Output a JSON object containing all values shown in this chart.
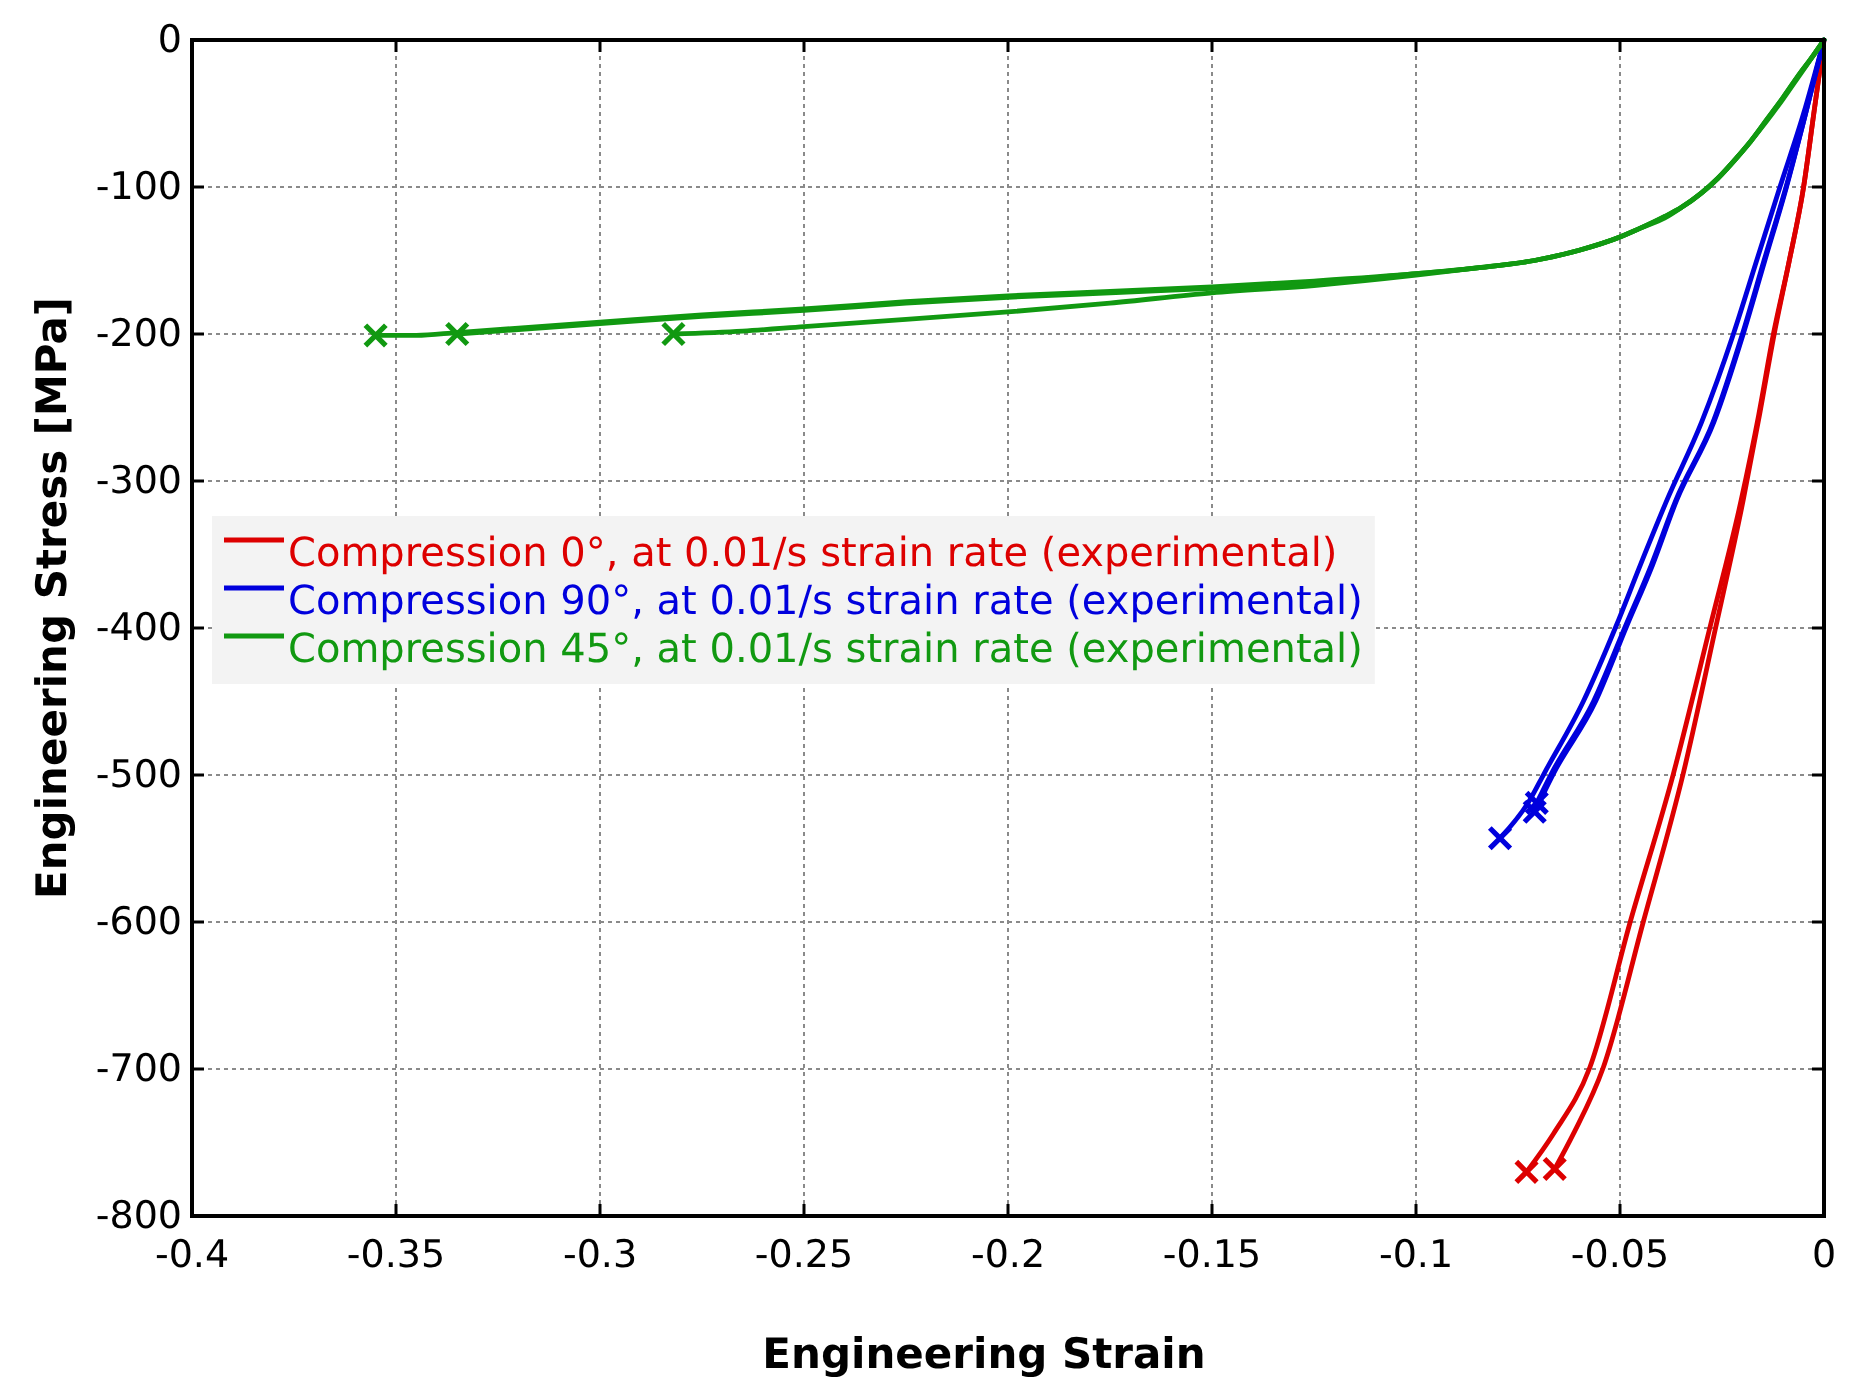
{
  "chart_data": {
    "type": "line",
    "xlabel": "Engineering Strain",
    "ylabel": "Engineering Stress [MPa]",
    "xlim": [
      -0.4,
      0
    ],
    "ylim": [
      -800,
      0
    ],
    "xticks": [
      -0.4,
      -0.35,
      -0.3,
      -0.25,
      -0.2,
      -0.15,
      -0.1,
      -0.05,
      0
    ],
    "yticks": [
      -800,
      -700,
      -600,
      -500,
      -400,
      -300,
      -200,
      -100,
      0
    ],
    "grid": true,
    "legend": "left",
    "line_style": "solid",
    "series": [
      {
        "name": "Compression 0°, at 0.01/s strain rate (experimental)",
        "color": "#dd0000",
        "x": [
          0,
          -0.0025,
          -0.005,
          -0.0085,
          -0.0124,
          -0.016,
          -0.0203,
          -0.0279,
          -0.0369,
          -0.0475,
          -0.0574,
          -0.0663,
          -0.0729
        ],
        "values": [
          0,
          -50,
          -100,
          -150,
          -200,
          -255,
          -313,
          -399,
          -499,
          -600,
          -699,
          -744,
          -770
        ]
      },
      {
        "color": "#dd0000",
        "x": [
          0,
          -0.0025,
          -0.005,
          -0.0085,
          -0.0122,
          -0.0158,
          -0.0198,
          -0.0265,
          -0.0345,
          -0.0443,
          -0.0541,
          -0.0614,
          -0.066
        ],
        "values": [
          0,
          -50,
          -100,
          -150,
          -200,
          -255,
          -313,
          -399,
          -499,
          -600,
          -699,
          -744,
          -768
        ]
      },
      {
        "type": "scatter",
        "marker": "cross",
        "color": "#dd0000",
        "x": [
          -0.0729,
          -0.066
        ],
        "values": [
          -770,
          -768
        ]
      },
      {
        "name": "Compression 90°, at 0.01/s strain rate (experimental)",
        "color": "#0000dd",
        "x": [
          0,
          -0.005,
          -0.0108,
          -0.0165,
          -0.0222,
          -0.03,
          -0.0385,
          -0.045,
          -0.051,
          -0.059,
          -0.0686,
          -0.0721,
          -0.0794
        ],
        "values": [
          0,
          -50,
          -100,
          -150,
          -200,
          -260,
          -313,
          -357,
          -399,
          -450,
          -499,
          -517,
          -543
        ]
      },
      {
        "color": "#0000dd",
        "x": [
          0,
          -0.0045,
          -0.0092,
          -0.0145,
          -0.0198,
          -0.027,
          -0.0361,
          -0.042,
          -0.0484,
          -0.056,
          -0.0663,
          -0.0709
        ],
        "values": [
          0,
          -50,
          -100,
          -150,
          -200,
          -260,
          -313,
          -357,
          -399,
          -450,
          -499,
          -525
        ]
      },
      {
        "color": "#0000dd",
        "x": [
          0,
          -0.0045,
          -0.0093,
          -0.0147,
          -0.02,
          -0.0272,
          -0.0363,
          -0.0423,
          -0.0487,
          -0.0565,
          -0.0668,
          -0.0704
        ],
        "values": [
          0,
          -50,
          -100,
          -150,
          -200,
          -260,
          -313,
          -357,
          -399,
          -450,
          -499,
          -519
        ]
      },
      {
        "type": "scatter",
        "marker": "cross",
        "color": "#0000dd",
        "x": [
          -0.0794,
          -0.0709,
          -0.0704
        ],
        "values": [
          -543,
          -525,
          -519
        ]
      },
      {
        "name": "Compression 45°, at 0.01/s strain rate (experimental)",
        "color": "#119911",
        "x": [
          0,
          -0.003,
          -0.006,
          -0.01,
          -0.014,
          -0.018,
          -0.022,
          -0.026,
          -0.03,
          -0.035,
          -0.039,
          -0.045,
          -0.05,
          -0.06,
          -0.071,
          -0.085,
          -0.1,
          -0.125,
          -0.15,
          -0.175,
          -0.2,
          -0.225,
          -0.25,
          -0.275,
          -0.3,
          -0.32,
          -0.335,
          -0.345,
          -0.355
        ],
        "values": [
          0,
          -12,
          -23,
          -39,
          -54,
          -69,
          -82,
          -94,
          -104,
          -114,
          -120,
          -128,
          -134,
          -143,
          -150,
          -155,
          -159,
          -164,
          -168,
          -171,
          -174,
          -178,
          -183,
          -187,
          -192,
          -196,
          -199,
          -201,
          -201
        ]
      },
      {
        "color": "#119911",
        "x": [
          0,
          -0.003,
          -0.006,
          -0.01,
          -0.014,
          -0.018,
          -0.022,
          -0.026,
          -0.03,
          -0.035,
          -0.039,
          -0.045,
          -0.05,
          -0.06,
          -0.071,
          -0.085,
          -0.1,
          -0.125,
          -0.15,
          -0.175,
          -0.2,
          -0.225,
          -0.25,
          -0.275,
          -0.3,
          -0.32,
          -0.335
        ],
        "values": [
          0,
          -12,
          -24,
          -40,
          -55,
          -69,
          -82,
          -94,
          -104,
          -114,
          -121,
          -128,
          -134,
          -143,
          -150,
          -155,
          -159,
          -165,
          -169,
          -172,
          -175,
          -179,
          -184,
          -188,
          -193,
          -197,
          -200
        ]
      },
      {
        "color": "#119911",
        "x": [
          0,
          -0.003,
          -0.006,
          -0.01,
          -0.014,
          -0.018,
          -0.022,
          -0.026,
          -0.03,
          -0.035,
          -0.039,
          -0.045,
          -0.05,
          -0.06,
          -0.071,
          -0.085,
          -0.1,
          -0.125,
          -0.15,
          -0.175,
          -0.2,
          -0.225,
          -0.25,
          -0.265,
          -0.282
        ],
        "values": [
          0,
          -12,
          -23,
          -39,
          -54,
          -69,
          -82,
          -94,
          -104,
          -114,
          -120,
          -128,
          -134,
          -143,
          -150,
          -155,
          -160,
          -167,
          -172,
          -179,
          -185,
          -190,
          -195,
          -198,
          -200
        ]
      },
      {
        "type": "scatter",
        "marker": "cross",
        "color": "#119911",
        "x": [
          -0.355,
          -0.335,
          -0.282
        ],
        "values": [
          -201,
          -200,
          -200
        ]
      }
    ]
  }
}
